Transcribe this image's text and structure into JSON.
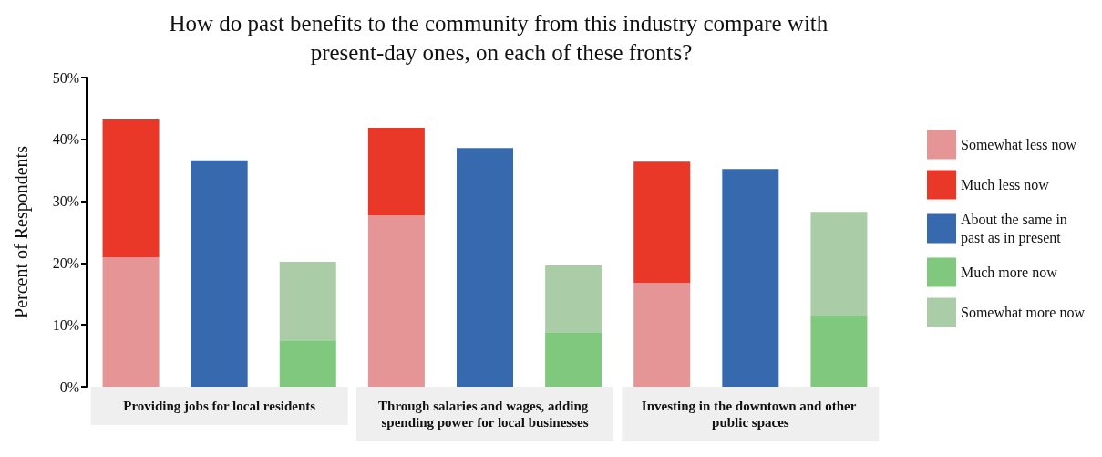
{
  "chart_data": {
    "type": "bar",
    "title": "How do past benefits to the community from this industry compare with present-day ones, on each of these fronts?",
    "ylabel": "Percent of Respondents",
    "categories": [
      null,
      "Providing jobs for local residents",
      null,
      null,
      "Through salaries and wages, adding spending power for local businesses",
      null,
      null,
      "Investing in the downtown and other public spaces",
      null
    ],
    "series": [
      {
        "name": "Somewhat less now",
        "color": "#e69597",
        "values": [
          20.9,
          null,
          null,
          27.7,
          null,
          null,
          16.8,
          null,
          null
        ]
      },
      {
        "name": "Much less now",
        "color": "#e93728",
        "values": [
          22.3,
          null,
          null,
          14.2,
          null,
          null,
          19.6,
          null,
          null
        ]
      },
      {
        "name": "About the same in past as in present",
        "color": "#3769ae",
        "values": [
          null,
          36.6,
          null,
          null,
          38.6,
          null,
          null,
          35.2,
          null
        ]
      },
      {
        "name": "Much more now",
        "color": "#7fc87d",
        "values": [
          null,
          null,
          7.5,
          null,
          null,
          8.8,
          null,
          null,
          11.5
        ]
      },
      {
        "name": "Somewhat more now",
        "color": "#aacda8",
        "values": [
          null,
          null,
          12.7,
          null,
          null,
          10.8,
          null,
          null,
          16.8
        ]
      }
    ],
    "stacked": true,
    "ylim": [
      0,
      50
    ],
    "yticks": [
      {
        "value": 0,
        "label": "0%"
      },
      {
        "value": 10,
        "label": "10%"
      },
      {
        "value": 20,
        "label": "20%"
      },
      {
        "value": 30,
        "label": "30%"
      },
      {
        "value": 40,
        "label": "40%"
      },
      {
        "value": 50,
        "label": "50%"
      }
    ],
    "grid": false,
    "legend": "right"
  }
}
